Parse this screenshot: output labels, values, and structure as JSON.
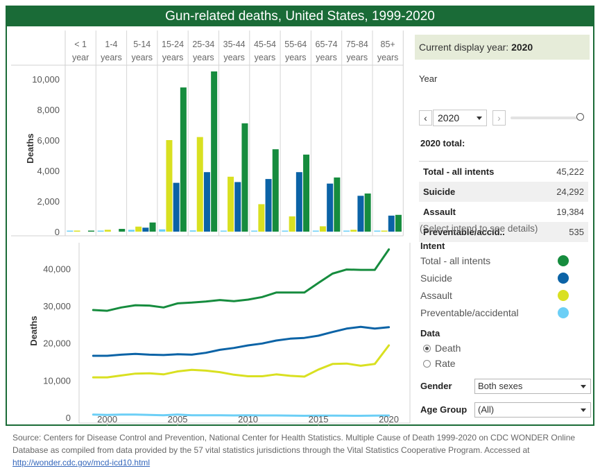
{
  "title": "Gun-related deaths, United States, 1999-2020",
  "chart_data": [
    {
      "type": "bar",
      "ylabel": "Deaths",
      "ylim": [
        0,
        11000
      ],
      "yticks": [
        0,
        2000,
        4000,
        6000,
        8000,
        10000
      ],
      "ytick_labels": [
        "0",
        "2,000",
        "4,000",
        "6,000",
        "8,000",
        "10,000"
      ],
      "categories": [
        {
          "top": "< 1",
          "bottom": "year"
        },
        {
          "top": "1-4",
          "bottom": "years"
        },
        {
          "top": "5-14",
          "bottom": "years"
        },
        {
          "top": "15-24",
          "bottom": "years"
        },
        {
          "top": "25-34",
          "bottom": "years"
        },
        {
          "top": "35-44",
          "bottom": "years"
        },
        {
          "top": "45-54",
          "bottom": "years"
        },
        {
          "top": "55-64",
          "bottom": "years"
        },
        {
          "top": "65-74",
          "bottom": "years"
        },
        {
          "top": "75-84",
          "bottom": "years"
        },
        {
          "top": "85+",
          "bottom": "years"
        }
      ],
      "series": [
        {
          "name": "Preventable/accidental",
          "color": "#6ccff6",
          "values": [
            5,
            60,
            120,
            150,
            80,
            60,
            40,
            30,
            20,
            10,
            5
          ]
        },
        {
          "name": "Assault",
          "color": "#d9e021",
          "values": [
            10,
            120,
            330,
            6000,
            6200,
            3600,
            1800,
            1000,
            350,
            120,
            40
          ]
        },
        {
          "name": "Suicide",
          "color": "#0b63a6",
          "values": [
            0,
            0,
            260,
            3200,
            3900,
            3250,
            3450,
            3900,
            3150,
            2350,
            1050
          ]
        },
        {
          "name": "Total - all intents",
          "color": "#168c3e",
          "values": [
            20,
            180,
            600,
            9450,
            10500,
            7100,
            5400,
            5050,
            3550,
            2500,
            1100
          ]
        }
      ]
    },
    {
      "type": "line",
      "ylabel": "Deaths",
      "ylim": [
        -1500,
        47000
      ],
      "xlim": [
        1998,
        2021.5
      ],
      "yticks": [
        0,
        10000,
        20000,
        30000,
        40000
      ],
      "ytick_labels": [
        "0",
        "10,000",
        "20,000",
        "30,000",
        "40,000"
      ],
      "xticks": [
        2000,
        2005,
        2010,
        2015,
        2020
      ],
      "x": [
        1999,
        2000,
        2001,
        2002,
        2003,
        2004,
        2005,
        2006,
        2007,
        2008,
        2009,
        2010,
        2011,
        2012,
        2013,
        2014,
        2015,
        2016,
        2017,
        2018,
        2019,
        2020
      ],
      "series": [
        {
          "name": "Total - all intents",
          "color": "#168c3e",
          "values": [
            28900,
            28700,
            29600,
            30200,
            30100,
            29600,
            30700,
            30900,
            31200,
            31600,
            31300,
            31700,
            32400,
            33600,
            33600,
            33600,
            36200,
            38700,
            39800,
            39700,
            39700,
            45200
          ]
        },
        {
          "name": "Suicide",
          "color": "#0b63a6",
          "values": [
            16600,
            16600,
            16900,
            17100,
            16900,
            16800,
            17000,
            16900,
            17400,
            18200,
            18700,
            19400,
            19900,
            20700,
            21200,
            21400,
            22000,
            23000,
            23900,
            24400,
            23900,
            24300
          ]
        },
        {
          "name": "Assault",
          "color": "#d9e021",
          "values": [
            10800,
            10800,
            11300,
            11800,
            11900,
            11600,
            12400,
            12800,
            12600,
            12200,
            11500,
            11100,
            11100,
            11600,
            11200,
            11000,
            12900,
            14400,
            14500,
            13900,
            14400,
            19400
          ]
        },
        {
          "name": "Preventable/accidental",
          "color": "#6ccff6",
          "values": [
            800,
            700,
            800,
            800,
            700,
            600,
            800,
            600,
            600,
            600,
            550,
            600,
            550,
            550,
            500,
            450,
            500,
            500,
            480,
            460,
            490,
            535
          ]
        }
      ]
    }
  ],
  "panel": {
    "display_year_label": "Current display year:",
    "display_year": "2020",
    "year_label": "Year",
    "year_value": "2020",
    "prev_icon": "‹",
    "next_icon": "›",
    "total_label": "2020 total:",
    "totals": [
      {
        "name": "Total - all intents",
        "value": "45,222"
      },
      {
        "name": "Suicide",
        "value": "24,292"
      },
      {
        "name": "Assault",
        "value": "19,384"
      },
      {
        "name": "Preventable/accid..",
        "value": "535"
      }
    ],
    "select_hint": "(Select intend to see details)",
    "intent_title": "Intent",
    "intents": [
      {
        "label": "Total - all intents",
        "color": "#168c3e"
      },
      {
        "label": "Suicide",
        "color": "#0b63a6"
      },
      {
        "label": "Assault",
        "color": "#d9e021"
      },
      {
        "label": "Preventable/accidental",
        "color": "#6ccff6"
      }
    ],
    "data_title": "Data",
    "data_options": [
      "Death",
      "Rate"
    ],
    "data_selected": "Death",
    "gender_label": "Gender",
    "gender_value": "Both sexes",
    "age_label": "Age Group",
    "age_value": "(All)"
  },
  "source": {
    "text": "Source:  Centers for Disease Control and Prevention, National Center for Health Statistics. Multiple Cause of Death 1999-2020 on CDC WONDER Online Database  as compiled from data provided by the 57 vital statistics jurisdictions through the Vital Statistics Cooperative Program. Accessed at ",
    "link": "http://wonder.cdc.gov/mcd-icd10.html"
  }
}
